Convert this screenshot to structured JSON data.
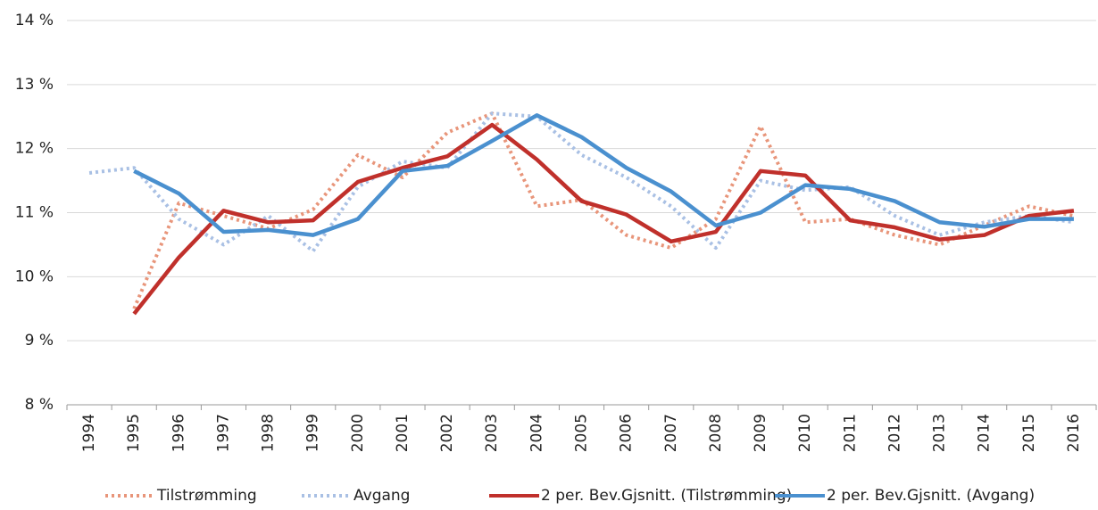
{
  "chart_data": {
    "type": "line",
    "categories": [
      "1994",
      "1995",
      "1996",
      "1997",
      "1998",
      "1999",
      "2000",
      "2001",
      "2002",
      "2003",
      "2004",
      "2005",
      "2006",
      "2007",
      "2008",
      "2009",
      "2010",
      "2011",
      "2012",
      "2013",
      "2014",
      "2015",
      "2016"
    ],
    "series": [
      {
        "name": "Tilstrømming",
        "color": "#e8957a",
        "dashed": true,
        "values": [
          null,
          9.5,
          11.15,
          10.95,
          10.75,
          11.05,
          11.9,
          11.55,
          12.25,
          12.55,
          11.1,
          11.2,
          10.65,
          10.45,
          10.9,
          12.35,
          10.85,
          10.9,
          10.65,
          10.5,
          10.8,
          11.1,
          10.95
        ]
      },
      {
        "name": "Avgang",
        "color": "#a9c0e4",
        "dashed": true,
        "values": [
          11.62,
          11.7,
          10.9,
          10.5,
          10.95,
          10.4,
          11.4,
          11.8,
          11.7,
          12.55,
          12.5,
          11.9,
          11.55,
          11.1,
          10.45,
          11.5,
          11.35,
          11.4,
          10.95,
          10.65,
          10.85,
          10.95,
          10.85
        ]
      },
      {
        "name": "2 per. Bev.Gjsnitt. (Tilstrømming)",
        "color": "#c0302b",
        "dashed": false,
        "values": [
          null,
          9.42,
          10.3,
          11.03,
          10.85,
          10.88,
          11.48,
          11.7,
          11.88,
          12.37,
          11.83,
          11.18,
          10.97,
          10.55,
          10.7,
          11.65,
          11.58,
          10.88,
          10.77,
          10.58,
          10.65,
          10.95,
          11.03
        ]
      },
      {
        "name": "2 per. Bev.Gjsnitt. (Avgang)",
        "color": "#4a90cf",
        "dashed": false,
        "values": [
          null,
          11.65,
          11.3,
          10.7,
          10.73,
          10.65,
          10.9,
          11.65,
          11.73,
          12.12,
          12.52,
          12.18,
          11.7,
          11.33,
          10.8,
          11.0,
          11.43,
          11.37,
          11.18,
          10.85,
          10.78,
          10.9,
          10.9
        ]
      }
    ],
    "ylim": [
      8,
      14
    ],
    "yticks": [
      {
        "value": 8,
        "label": "8 %"
      },
      {
        "value": 9,
        "label": "9 %"
      },
      {
        "value": 10,
        "label": "10 %"
      },
      {
        "value": 11,
        "label": "11 %"
      },
      {
        "value": 12,
        "label": "12 %"
      },
      {
        "value": 13,
        "label": "13 %"
      },
      {
        "value": 14,
        "label": "14 %"
      }
    ],
    "grid": true,
    "legend": "bottom"
  }
}
